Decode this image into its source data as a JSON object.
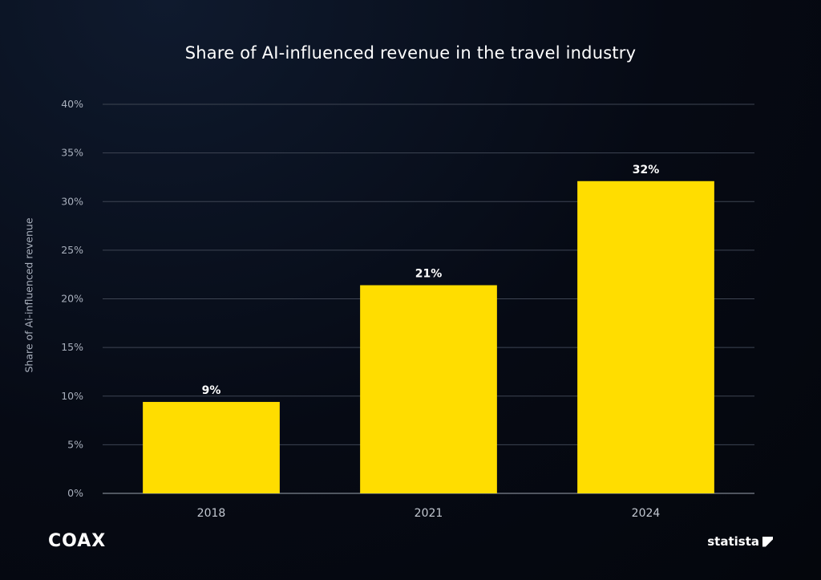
{
  "chart_data": {
    "type": "bar",
    "title": "Share of AI-influenced revenue in the travel industry",
    "ylabel": "Share of Ai-influenced revenue",
    "xlabel": "",
    "categories": [
      "2018",
      "2021",
      "2024"
    ],
    "values": [
      9.4,
      21.4,
      32.1
    ],
    "data_labels": [
      "9%",
      "21%",
      "32%"
    ],
    "ylim": [
      0,
      40
    ],
    "yticks": [
      "0%",
      "5%",
      "10%",
      "15%",
      "20%",
      "25%",
      "30%",
      "35%",
      "40%"
    ],
    "grid": true,
    "bar_color": "#FFDD00"
  },
  "branding": {
    "left_logo": "COAX",
    "right_logo": "statista"
  }
}
